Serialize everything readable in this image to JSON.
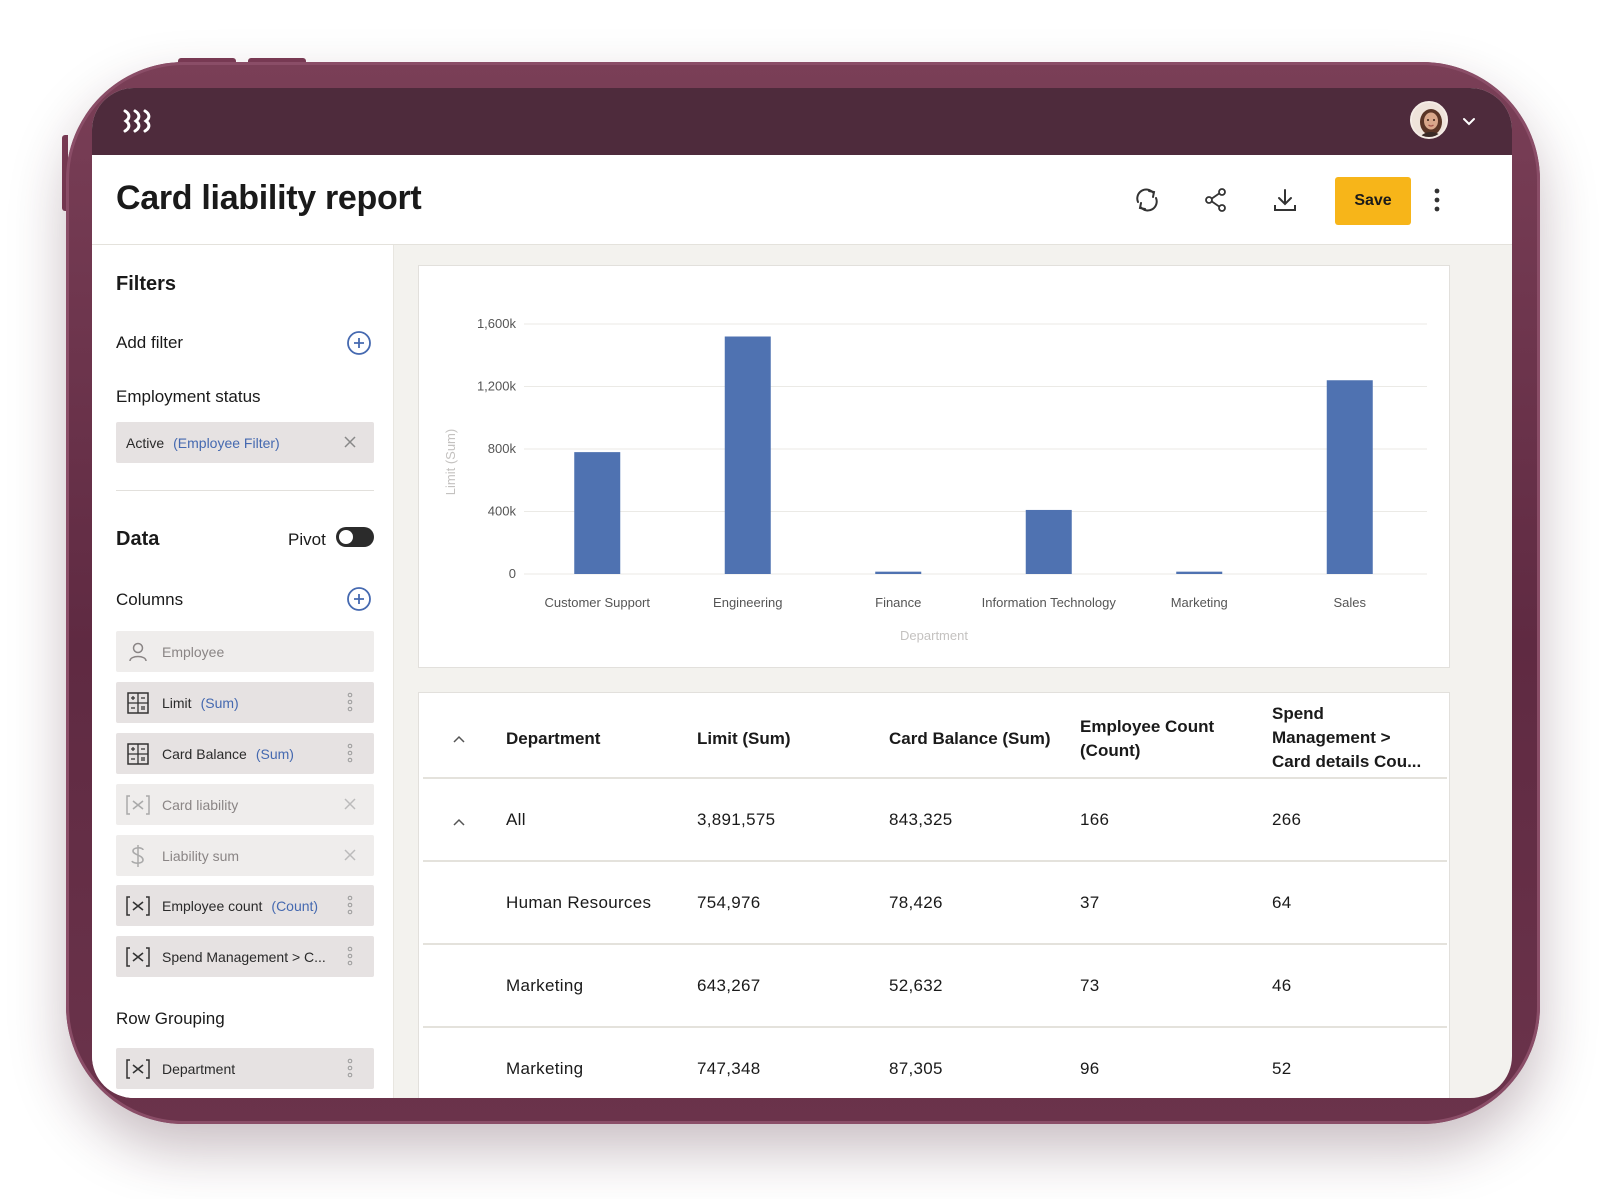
{
  "app": {
    "avatar_name": "user-avatar"
  },
  "header": {
    "title": "Card liability report",
    "save_label": "Save"
  },
  "sidebar": {
    "filters_heading": "Filters",
    "add_filter_label": "Add filter",
    "employment_status_label": "Employment status",
    "filter_chip": {
      "value": "Active",
      "suffix": "(Employee Filter)"
    },
    "data_heading": "Data",
    "pivot_label": "Pivot",
    "columns_label": "Columns",
    "columns": [
      {
        "label": "Employee",
        "suffix": "",
        "icon": "person-icon"
      },
      {
        "label": "Limit",
        "suffix": "(Sum)",
        "icon": "calculator-icon"
      },
      {
        "label": "Card Balance",
        "suffix": "(Sum)",
        "icon": "calculator-icon"
      },
      {
        "label": "Card liability",
        "suffix": "",
        "icon": "variable-icon"
      },
      {
        "label": "Liability sum",
        "suffix": "",
        "icon": "dollar-icon"
      },
      {
        "label": "Employee count",
        "suffix": "(Count)",
        "icon": "variable-icon"
      },
      {
        "label": "Spend Management > C...",
        "suffix": "",
        "icon": "variable-icon"
      }
    ],
    "row_grouping_label": "Row Grouping",
    "row_grouping_items": [
      {
        "label": "Department"
      }
    ]
  },
  "chart_data": {
    "type": "bar",
    "categories": [
      "Customer Support",
      "Engineering",
      "Finance",
      "Information Technology",
      "Marketing",
      "Sales"
    ],
    "values": [
      780000,
      1520000,
      15000,
      410000,
      15000,
      1240000
    ],
    "xlabel": "Department",
    "ylabel": "Limit (Sum)",
    "ylim": [
      0,
      1600000
    ],
    "yticks": [
      0,
      400000,
      800000,
      1200000,
      1600000
    ],
    "ytick_labels": [
      "0",
      "400k",
      "800k",
      "1,200k",
      "1,600k"
    ],
    "bar_color": "#4f72b1",
    "grid": true
  },
  "table": {
    "headers": {
      "department": "Department",
      "limit": "Limit (Sum)",
      "card_balance": "Card Balance (Sum)",
      "employee_count_1": "Employee Count",
      "employee_count_2": "(Count)",
      "spend_1": "Spend",
      "spend_2": "Management >",
      "spend_3": "Card details Cou..."
    },
    "rows": [
      {
        "department": "All",
        "limit": "3,891,575",
        "card_balance": "843,325",
        "employee_count": "166",
        "spend": "266"
      },
      {
        "department": "Human Resources",
        "limit": "754,976",
        "card_balance": "78,426",
        "employee_count": "37",
        "spend": "64"
      },
      {
        "department": "Marketing",
        "limit": "643,267",
        "card_balance": "52,632",
        "employee_count": "73",
        "spend": "46"
      },
      {
        "department": "Marketing",
        "limit": "747,348",
        "card_balance": "87,305",
        "employee_count": "96",
        "spend": "52"
      }
    ]
  },
  "colors": {
    "topbar": "#4e2b3c",
    "accent": "#f7b519",
    "link": "#4569b0"
  }
}
